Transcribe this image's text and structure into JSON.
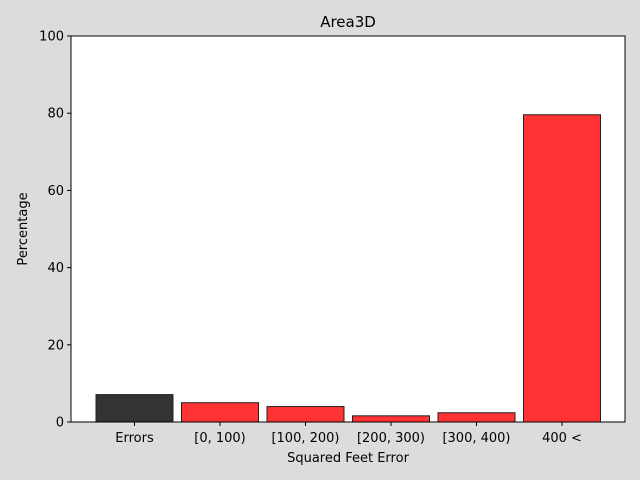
{
  "chart_data": {
    "type": "bar",
    "title": "Area3D",
    "xlabel": "Squared Feet Error",
    "ylabel": "Percentage",
    "ylim": [
      0,
      100
    ],
    "yticks": [
      0,
      20,
      40,
      60,
      80,
      100
    ],
    "categories": [
      "Errors",
      "[0, 100)",
      "[100, 200)",
      "[200, 300)",
      "[300, 400)",
      "400 <"
    ],
    "values": [
      7.1,
      5.0,
      4.0,
      1.6,
      2.4,
      79.6
    ],
    "colors": [
      "#333333",
      "#ff3333",
      "#ff3333",
      "#ff3333",
      "#ff3333",
      "#ff3333"
    ],
    "edge_color": "#222222",
    "background": "#dcdcdc",
    "plot_background": "#ffffff",
    "grid": false,
    "legend": "none"
  }
}
